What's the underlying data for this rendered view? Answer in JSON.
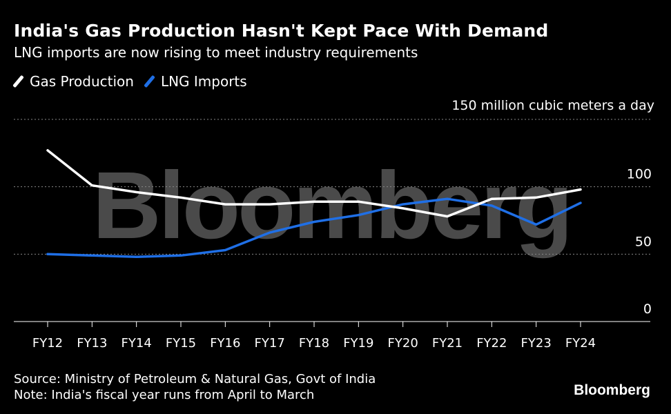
{
  "header": {
    "title": "India's Gas Production Hasn't Kept Pace With Demand",
    "subtitle": "LNG imports are now rising to meet industry requirements"
  },
  "legend": [
    {
      "label": "Gas Production",
      "color": "#ffffff"
    },
    {
      "label": "LNG Imports",
      "color": "#1f6fe6"
    }
  ],
  "unit_label": "150 million cubic meters a day",
  "watermark": "Bloomberg",
  "footer": {
    "source": "Source: Ministry of Petroleum & Natural Gas, Govt of India",
    "note": "Note: India's fiscal year runs from April to March"
  },
  "brand": "Bloomberg",
  "chart_data": {
    "type": "line",
    "categories": [
      "FY12",
      "FY13",
      "FY14",
      "FY15",
      "FY16",
      "FY17",
      "FY18",
      "FY19",
      "FY20",
      "FY21",
      "FY22",
      "FY23",
      "FY24"
    ],
    "series": [
      {
        "name": "Gas Production",
        "color": "#ffffff",
        "values": [
          127,
          101,
          96,
          92,
          87,
          87,
          89,
          89,
          84,
          78,
          91,
          92,
          98
        ]
      },
      {
        "name": "LNG Imports",
        "color": "#1f6fe6",
        "values": [
          50,
          49,
          48,
          49,
          53,
          66,
          74,
          79,
          87,
          91,
          86,
          72,
          88
        ]
      }
    ],
    "ylim": [
      0,
      150
    ],
    "yticks": [
      0,
      50,
      100,
      150
    ],
    "ytick_labels": [
      "0",
      "50",
      "100",
      ""
    ],
    "grid": true,
    "legend_position": "top-left"
  }
}
